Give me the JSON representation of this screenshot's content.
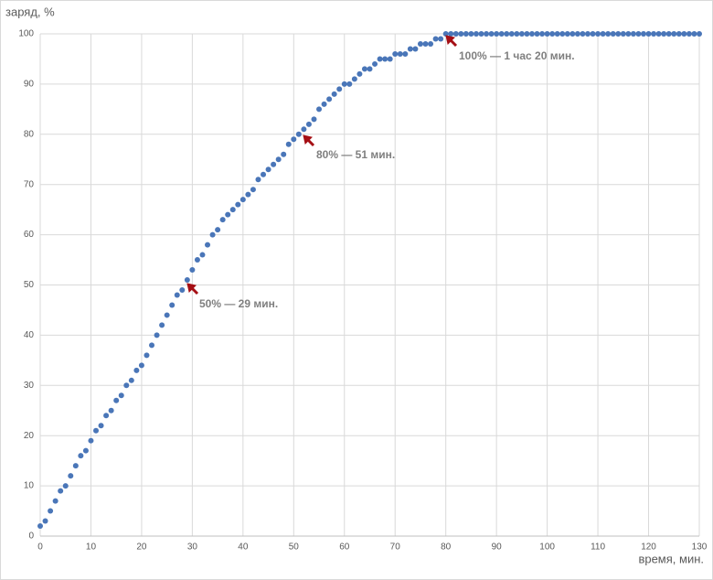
{
  "chart_data": {
    "type": "scatter",
    "y_label": "заряд, %",
    "x_label": "время, мин.",
    "x": [
      0,
      1,
      2,
      3,
      4,
      5,
      6,
      7,
      8,
      9,
      10,
      11,
      12,
      13,
      14,
      15,
      16,
      17,
      18,
      19,
      20,
      21,
      22,
      23,
      24,
      25,
      26,
      27,
      28,
      29,
      30,
      31,
      32,
      33,
      34,
      35,
      36,
      37,
      38,
      39,
      40,
      41,
      42,
      43,
      44,
      45,
      46,
      47,
      48,
      49,
      50,
      51,
      52,
      53,
      54,
      55,
      56,
      57,
      58,
      59,
      60,
      61,
      62,
      63,
      64,
      65,
      66,
      67,
      68,
      69,
      70,
      71,
      72,
      73,
      74,
      75,
      76,
      77,
      78,
      79,
      80,
      81,
      82,
      83,
      84,
      85,
      86,
      87,
      88,
      89,
      90,
      91,
      92,
      93,
      94,
      95,
      96,
      97,
      98,
      99,
      100,
      101,
      102,
      103,
      104,
      105,
      106,
      107,
      108,
      109,
      110,
      111,
      112,
      113,
      114,
      115,
      116,
      117,
      118,
      119,
      120,
      121,
      122,
      123,
      124,
      125,
      126,
      127,
      128,
      129,
      130
    ],
    "values": [
      2,
      3,
      5,
      7,
      9,
      10,
      12,
      14,
      16,
      17,
      19,
      21,
      22,
      24,
      25,
      27,
      28,
      30,
      31,
      33,
      34,
      36,
      38,
      40,
      42,
      44,
      46,
      48,
      49,
      51,
      53,
      55,
      56,
      58,
      60,
      61,
      63,
      64,
      65,
      66,
      67,
      68,
      69,
      71,
      72,
      73,
      74,
      75,
      76,
      78,
      79,
      80,
      81,
      82,
      83,
      85,
      86,
      87,
      88,
      89,
      90,
      90,
      91,
      92,
      93,
      93,
      94,
      95,
      95,
      95,
      96,
      96,
      96,
      97,
      97,
      98,
      98,
      98,
      99,
      99,
      100,
      100,
      100,
      100,
      100,
      100,
      100,
      100,
      100,
      100,
      100,
      100,
      100,
      100,
      100,
      100,
      100,
      100,
      100,
      100,
      100,
      100,
      100,
      100,
      100,
      100,
      100,
      100,
      100,
      100,
      100,
      100,
      100,
      100,
      100,
      100,
      100,
      100,
      100,
      100,
      100,
      100,
      100,
      100,
      100,
      100,
      100,
      100,
      100,
      100,
      100
    ],
    "color": "#4a76b8",
    "xlim": [
      0,
      130
    ],
    "xticks": [
      0,
      10,
      20,
      30,
      40,
      50,
      60,
      70,
      80,
      90,
      100,
      110,
      120,
      130
    ],
    "ylim": [
      0,
      100
    ],
    "yticks": [
      0,
      10,
      20,
      30,
      40,
      50,
      60,
      70,
      80,
      90,
      100
    ],
    "grid": true,
    "annotations": [
      "50% — 29 мин.",
      "80% — 51 мин.",
      "100% — 1 час 20 мин."
    ]
  }
}
